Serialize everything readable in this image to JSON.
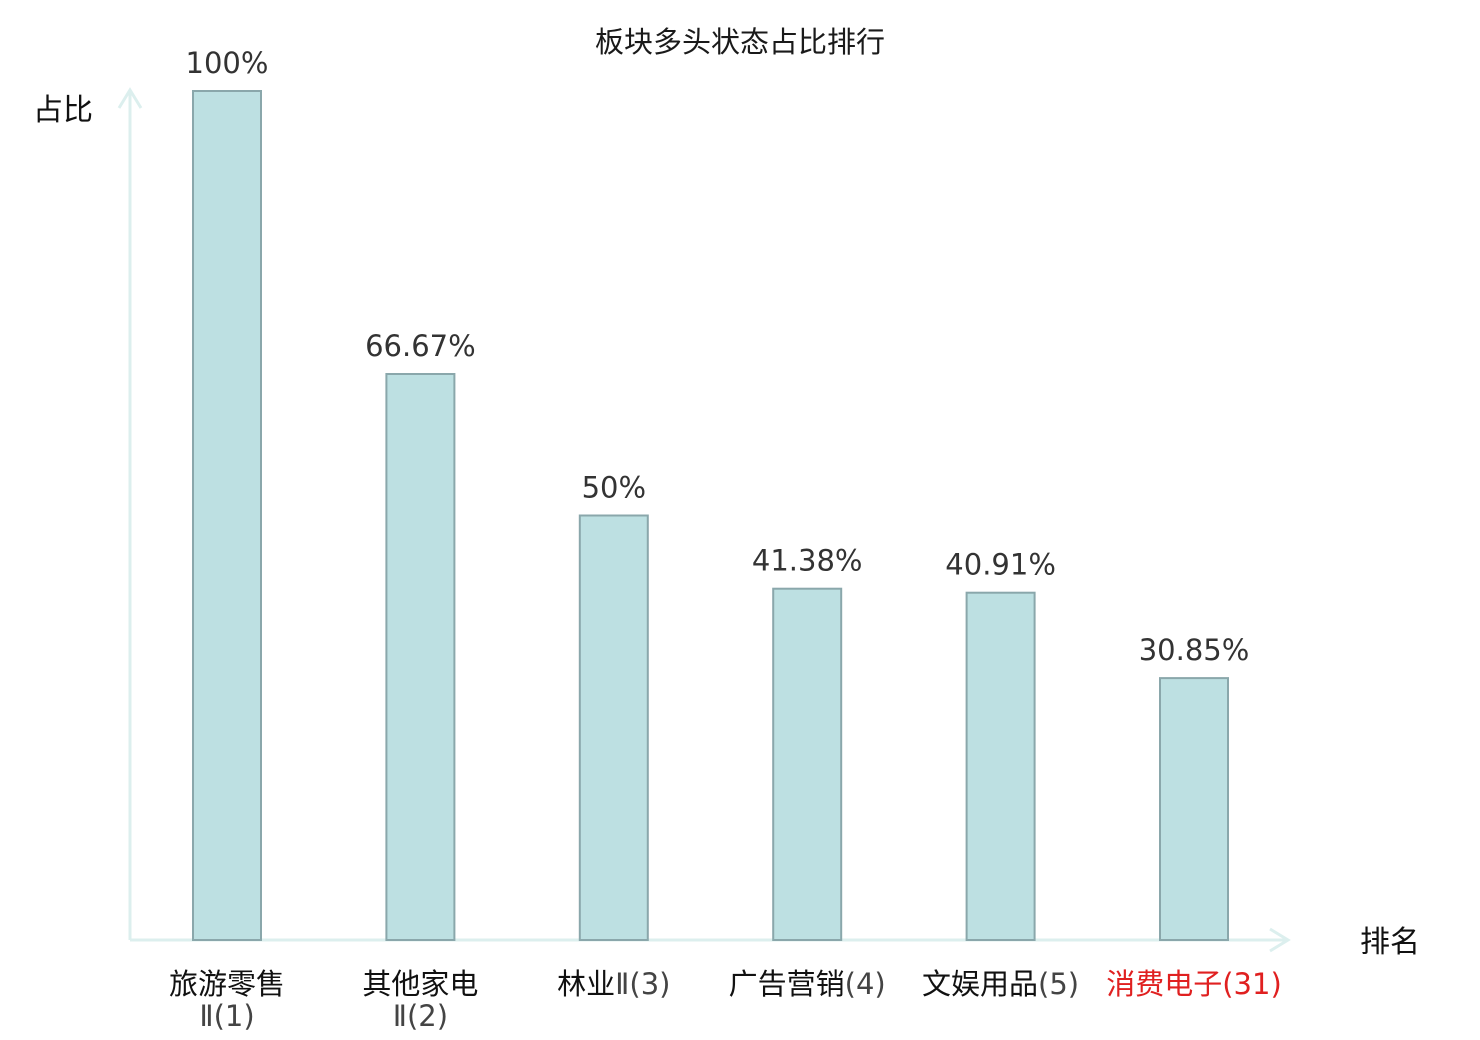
{
  "chart_data": {
    "type": "bar",
    "title": "板块多头状态占比排行",
    "xlabel": "排名",
    "ylabel": "占比",
    "ylim": [
      0,
      100
    ],
    "grid": false,
    "categories": [
      {
        "name": "旅游零售",
        "rank": "Ⅱ(1)",
        "wrap": true,
        "highlight": false
      },
      {
        "name": "其他家电",
        "rank": "Ⅱ(2)",
        "wrap": true,
        "highlight": false
      },
      {
        "name": "林业",
        "rank": "Ⅱ(3)",
        "wrap": false,
        "highlight": false
      },
      {
        "name": "广告营销",
        "rank": "(4)",
        "wrap": false,
        "highlight": false
      },
      {
        "name": "文娱用品",
        "rank": "(5)",
        "wrap": false,
        "highlight": false
      },
      {
        "name": "消费电子",
        "rank": "(31)",
        "wrap": false,
        "highlight": true
      }
    ],
    "values": [
      100,
      66.67,
      50,
      41.38,
      40.91,
      30.85
    ],
    "value_labels": [
      "100%",
      "66.67%",
      "50%",
      "41.38%",
      "40.91%",
      "30.85%"
    ],
    "colors": {
      "bar_fill": "#bde0e2",
      "bar_stroke": "#8aa7ab",
      "axis": "#dcefee",
      "highlight": "#e02020",
      "category_text": "#111111",
      "rank_text": "#444444"
    }
  }
}
